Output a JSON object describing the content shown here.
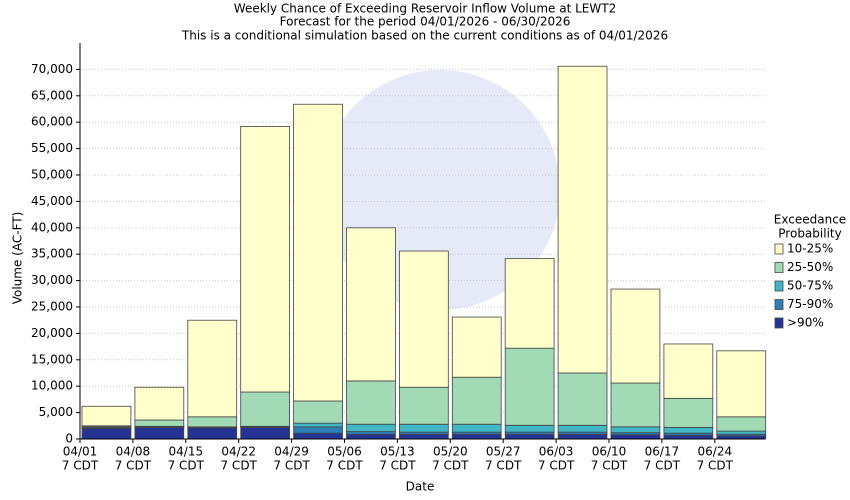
{
  "chart_data": {
    "type": "stacked_bar",
    "title": "Weekly Chance of Exceeding Reservoir Inflow Volume at LEWT2",
    "subtitle": "Forecast for the period 04/01/2026 - 06/30/2026",
    "subtitle2": "This is a conditional simulation based on the current conditions as of 04/01/2026",
    "x_label": "Date",
    "y_label": "Volume (AC-FT)",
    "categories": [
      "04/01",
      "04/08",
      "04/15",
      "04/22",
      "04/29",
      "05/06",
      "05/13",
      "05/20",
      "05/27",
      "06/03",
      "06/10",
      "06/17",
      "06/24"
    ],
    "category_sublabel": "7 CDT",
    "legend_title": [
      "Exceedance",
      "Probability"
    ],
    "legend_position": "right",
    "grid": true,
    "ylim": [
      0,
      75000
    ],
    "yticks": [
      0,
      {
        "value": 5000,
        "label": "5,000"
      },
      {
        "value": 10000,
        "label": "10,000"
      },
      {
        "value": 15000,
        "label": "15,000"
      },
      {
        "value": 20000,
        "label": "20,000"
      },
      {
        "value": 25000,
        "label": "25,000"
      },
      {
        "value": 30000,
        "label": "30,000"
      },
      {
        "value": 35000,
        "label": "35,000"
      },
      {
        "value": 40000,
        "label": "40,000"
      },
      {
        "value": 45000,
        "label": "45,000"
      },
      {
        "value": 50000,
        "label": "50,000"
      },
      {
        "value": 55000,
        "label": "55,000"
      },
      {
        "value": 60000,
        "label": "60,000"
      },
      {
        "value": 65000,
        "label": "65,000"
      },
      {
        "value": 70000,
        "label": "70,000"
      }
    ],
    "series": [
      {
        "name": ">90%",
        "color": "#253494",
        "values": [
          2000,
          2200,
          2100,
          2200,
          1100,
          900,
          900,
          900,
          900,
          900,
          800,
          700,
          600
        ]
      },
      {
        "name": "75-90%",
        "color": "#2c7fb8",
        "values": [
          200,
          100,
          100,
          100,
          1200,
          500,
          400,
          400,
          400,
          400,
          400,
          400,
          300
        ]
      },
      {
        "name": "50-75%",
        "color": "#41b6c4",
        "values": [
          100,
          100,
          100,
          100,
          700,
          1400,
          1500,
          1500,
          1300,
          1300,
          1100,
          1100,
          600
        ]
      },
      {
        "name": "25-50%",
        "color": "#a1dab4",
        "values": [
          200,
          1200,
          1900,
          6500,
          4200,
          8200,
          7000,
          8900,
          14600,
          9900,
          8300,
          5500,
          2700
        ]
      },
      {
        "name": "10-25%",
        "color": "#ffffcc",
        "values": [
          3700,
          6200,
          18300,
          50300,
          56200,
          29000,
          25800,
          11400,
          17000,
          58100,
          17800,
          10300,
          12500
        ]
      }
    ]
  }
}
